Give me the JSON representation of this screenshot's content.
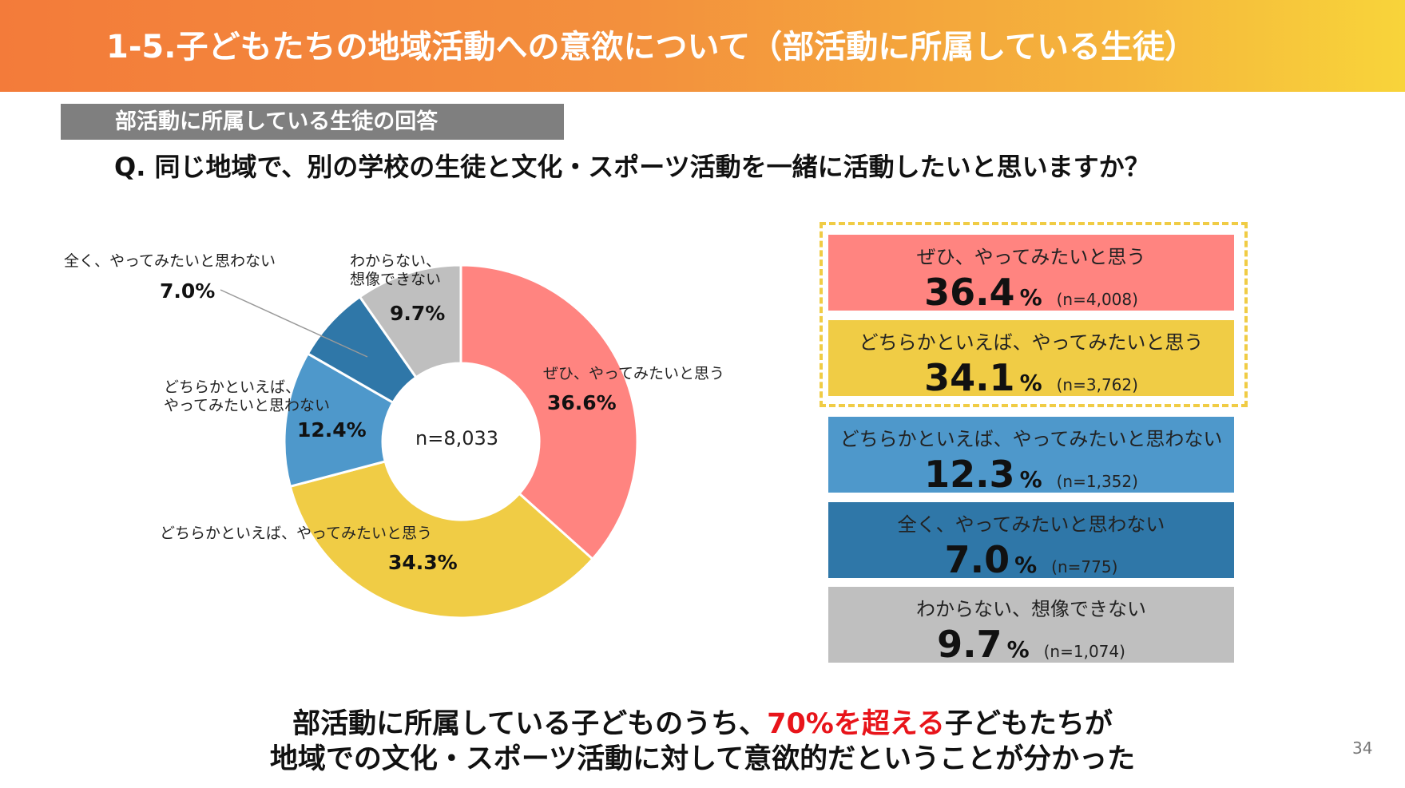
{
  "header": {
    "title": "1-5.子どもたちの地域活動への意欲について（部活動に所属している生徒）"
  },
  "section_label": "部活動に所属している生徒の回答",
  "question": "Q.  同じ地域で、別の学校の生徒と文化・スポーツ活動を一緒に活動したいと思いますか？",
  "colors": {
    "header_start": "#f37b3a",
    "header_end": "#f8d43a",
    "red": "#ff8480",
    "yellow": "#f0cc45",
    "lightblue": "#4e98cb",
    "darkblue": "#2f77a8",
    "gray": "#bfbfbf",
    "highlight": "#e8141a"
  },
  "chart_data": {
    "type": "pie",
    "donut": true,
    "center_label": "n=8,033",
    "slices": [
      {
        "label": "ぜひ、やってみたいと思う",
        "value": 36.6,
        "value_label": "36.6%",
        "color": "#ff8480"
      },
      {
        "label": "どちらかといえば、やってみたいと思う",
        "value": 34.3,
        "value_label": "34.3%",
        "color": "#f0cc45"
      },
      {
        "label_line1": "どちらかといえば、",
        "label_line2": "やってみたいと思わない",
        "label": "どちらかといえば、やってみたいと思わない",
        "value": 12.4,
        "value_label": "12.4%",
        "color": "#4e98cb"
      },
      {
        "label": "全く、やってみたいと思わない",
        "value": 7.0,
        "value_label": "7.0%",
        "color": "#2f77a8"
      },
      {
        "label_line1": "わからない、",
        "label_line2": "想像できない",
        "label": "わからない、想像できない",
        "value": 9.7,
        "value_label": "9.7%",
        "color": "#bfbfbf"
      }
    ]
  },
  "summary_boxes": [
    {
      "title": "ぜひ、やってみたいと思う",
      "value": "36.4",
      "unit": "%",
      "n": "(n=4,008)",
      "color": "#ff8480"
    },
    {
      "title": "どちらかといえば、やってみたいと思う",
      "value": "34.1",
      "unit": "%",
      "n": "(n=3,762)",
      "color": "#f0cc45"
    },
    {
      "title": "どちらかといえば、やってみたいと思わない",
      "value": "12.3",
      "unit": "%",
      "n": "(n=1,352)",
      "color": "#4e98cb"
    },
    {
      "title": "全く、やってみたいと思わない",
      "value": "7.0",
      "unit": "%",
      "n": "(n=775)",
      "color": "#2f77a8"
    },
    {
      "title": "わからない、想像できない",
      "value": "9.7",
      "unit": "%",
      "n": "(n=1,074)",
      "color": "#bfbfbf"
    }
  ],
  "conclusion": {
    "line1_before": "部活動に所属している子どものうち、",
    "line1_highlight": "70%を超える",
    "line1_after": "子どもたちが",
    "line2": "地域での文化・スポーツ活動に対して意欲的だということが分かった"
  },
  "page_number": "34"
}
